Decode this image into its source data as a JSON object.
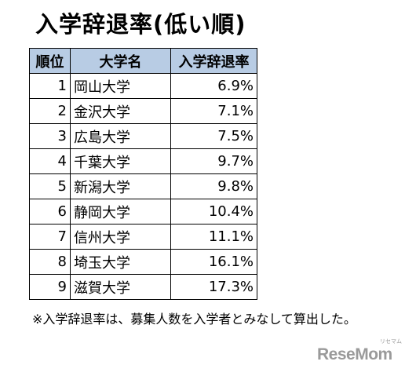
{
  "title": "入学辞退率(低い順)",
  "table": {
    "headers": [
      "順位",
      "大学名",
      "入学辞退率"
    ],
    "rows": [
      {
        "rank": "1",
        "name": "岡山大学",
        "rate": "6.9%"
      },
      {
        "rank": "2",
        "name": "金沢大学",
        "rate": "7.1%"
      },
      {
        "rank": "3",
        "name": "広島大学",
        "rate": "7.5%"
      },
      {
        "rank": "4",
        "name": "千葉大学",
        "rate": "9.7%"
      },
      {
        "rank": "5",
        "name": "新潟大学",
        "rate": "9.8%"
      },
      {
        "rank": "6",
        "name": "静岡大学",
        "rate": "10.4%"
      },
      {
        "rank": "7",
        "name": "信州大学",
        "rate": "11.1%"
      },
      {
        "rank": "8",
        "name": "埼玉大学",
        "rate": "16.1%"
      },
      {
        "rank": "9",
        "name": "滋賀大学",
        "rate": "17.3%"
      }
    ]
  },
  "note": "※入学辞退率は、募集人数を入学者とみなして算出した。",
  "logo": {
    "text": "ReseMom",
    "ruby": "リセマム"
  },
  "colors": {
    "header_bg": "#b8cce4",
    "logo": "#9a9a9a"
  }
}
